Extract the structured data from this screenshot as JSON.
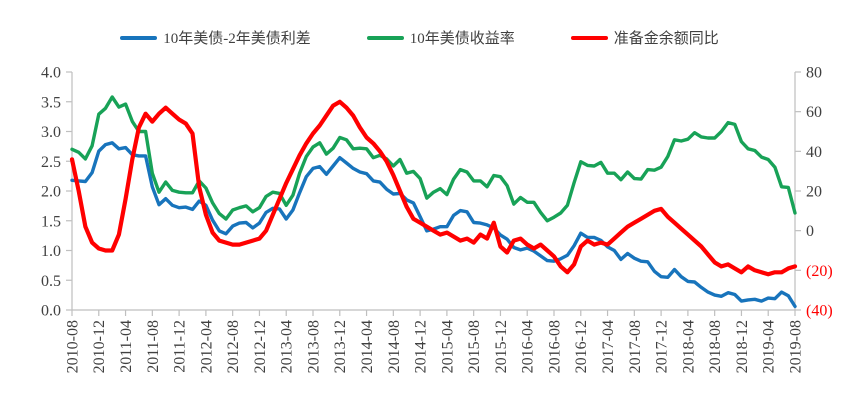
{
  "chart_data": {
    "type": "line",
    "title": "",
    "legend_position": "top",
    "grid": false,
    "x_start": "2010-08",
    "x_end": "2019-08",
    "x_frequency": "monthly",
    "x_tick_labels": [
      "2010-08",
      "2010-12",
      "2011-04",
      "2011-08",
      "2011-12",
      "2012-04",
      "2012-08",
      "2012-12",
      "2013-04",
      "2013-08",
      "2013-12",
      "2014-04",
      "2014-08",
      "2014-12",
      "2015-04",
      "2015-08",
      "2015-12",
      "2016-04",
      "2016-08",
      "2016-12",
      "2017-04",
      "2017-08",
      "2017-12",
      "2018-04",
      "2018-08",
      "2018-12",
      "2019-04",
      "2019-08"
    ],
    "left_axis": {
      "min": 0.0,
      "max": 4.0,
      "step": 0.5,
      "tick_labels": [
        "4.0",
        "3.5",
        "3.0",
        "2.5",
        "2.0",
        "1.5",
        "1.0",
        "0.5",
        "0.0"
      ]
    },
    "right_axis": {
      "min": -40,
      "max": 80,
      "step": 20,
      "tick_labels": [
        "80",
        "60",
        "40",
        "20",
        "0",
        "(20)",
        "(40)"
      ]
    },
    "series": [
      {
        "id": "spread",
        "name": "10年美债-2年美债利差",
        "axis": "left",
        "color": "#1874BC",
        "values": [
          2.18,
          2.17,
          2.16,
          2.31,
          2.67,
          2.78,
          2.81,
          2.71,
          2.73,
          2.61,
          2.59,
          2.59,
          2.07,
          1.77,
          1.87,
          1.76,
          1.72,
          1.73,
          1.69,
          1.83,
          1.76,
          1.51,
          1.33,
          1.28,
          1.41,
          1.46,
          1.47,
          1.38,
          1.46,
          1.64,
          1.71,
          1.7,
          1.53,
          1.68,
          1.97,
          2.24,
          2.38,
          2.41,
          2.28,
          2.42,
          2.56,
          2.47,
          2.38,
          2.32,
          2.29,
          2.17,
          2.15,
          2.03,
          1.95,
          1.96,
          1.85,
          1.8,
          1.57,
          1.33,
          1.36,
          1.4,
          1.4,
          1.59,
          1.67,
          1.65,
          1.47,
          1.46,
          1.43,
          1.38,
          1.26,
          1.19,
          1.05,
          1.01,
          1.04,
          0.99,
          0.91,
          0.83,
          0.82,
          0.86,
          0.92,
          1.08,
          1.29,
          1.22,
          1.22,
          1.17,
          1.06,
          1.0,
          0.85,
          0.95,
          0.87,
          0.82,
          0.81,
          0.65,
          0.56,
          0.55,
          0.68,
          0.56,
          0.48,
          0.47,
          0.38,
          0.3,
          0.25,
          0.23,
          0.29,
          0.26,
          0.15,
          0.17,
          0.18,
          0.15,
          0.2,
          0.19,
          0.3,
          0.24,
          0.06
        ]
      },
      {
        "id": "yield10y",
        "name": "10年美债收益率",
        "axis": "left",
        "color": "#18A257",
        "values": [
          2.7,
          2.65,
          2.54,
          2.76,
          3.29,
          3.39,
          3.58,
          3.41,
          3.46,
          3.17,
          3.0,
          3.0,
          2.3,
          1.98,
          2.15,
          2.01,
          1.98,
          1.97,
          1.97,
          2.17,
          2.05,
          1.8,
          1.62,
          1.53,
          1.68,
          1.72,
          1.75,
          1.65,
          1.72,
          1.91,
          1.98,
          1.96,
          1.76,
          1.93,
          2.3,
          2.58,
          2.74,
          2.81,
          2.62,
          2.72,
          2.9,
          2.86,
          2.71,
          2.72,
          2.71,
          2.56,
          2.6,
          2.54,
          2.42,
          2.53,
          2.3,
          2.33,
          2.21,
          1.88,
          1.98,
          2.04,
          1.94,
          2.2,
          2.36,
          2.32,
          2.17,
          2.17,
          2.07,
          2.26,
          2.24,
          2.09,
          1.78,
          1.89,
          1.81,
          1.81,
          1.64,
          1.5,
          1.56,
          1.63,
          1.76,
          2.14,
          2.49,
          2.43,
          2.42,
          2.48,
          2.3,
          2.3,
          2.19,
          2.32,
          2.21,
          2.2,
          2.36,
          2.35,
          2.4,
          2.58,
          2.86,
          2.84,
          2.87,
          2.98,
          2.91,
          2.89,
          2.89,
          3.0,
          3.15,
          3.12,
          2.83,
          2.71,
          2.68,
          2.57,
          2.53,
          2.4,
          2.07,
          2.06,
          1.63
        ]
      },
      {
        "id": "reserves",
        "name": "准备金余额同比",
        "axis": "right",
        "color": "#FF0000",
        "values": [
          36,
          20,
          2,
          -6,
          -9,
          -10,
          -10,
          -2,
          16,
          36,
          52,
          59,
          55,
          59,
          62,
          59,
          56,
          54,
          49,
          22,
          8,
          -1,
          -5,
          -6,
          -7,
          -7,
          -6,
          -5,
          -4,
          0,
          8,
          16,
          24,
          31,
          38,
          44,
          49,
          53,
          58,
          63,
          65,
          62,
          58,
          52,
          47,
          44,
          40,
          35,
          28,
          20,
          12,
          6,
          4,
          2,
          0,
          -2,
          -1,
          -3,
          -5,
          -4,
          -6,
          -2,
          -4,
          4,
          -8,
          -11,
          -5,
          -4,
          -7,
          -9,
          -7,
          -10,
          -13,
          -18,
          -21,
          -17,
          -8,
          -5,
          -7,
          -6,
          -7,
          -4,
          -1,
          2,
          4,
          6,
          8,
          10,
          11,
          7,
          4,
          1,
          -2,
          -5,
          -8,
          -12,
          -16,
          -18,
          -17,
          -19,
          -21,
          -18,
          -20,
          -21,
          -22,
          -21,
          -21,
          -19,
          -18
        ]
      }
    ]
  },
  "colors": {
    "axis_line": "#BFBFBF",
    "tick_mark": "#BFBFBF",
    "tick_label": "#404040",
    "negative_label": "#FF0000",
    "background": "#FFFFFF"
  }
}
